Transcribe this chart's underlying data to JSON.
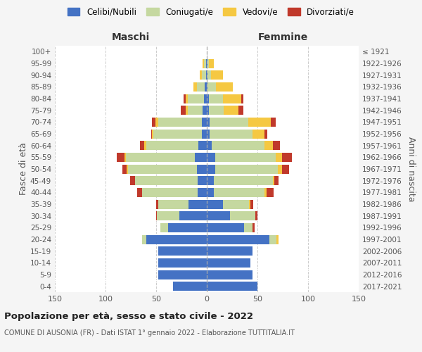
{
  "age_groups": [
    "100+",
    "95-99",
    "90-94",
    "85-89",
    "80-84",
    "75-79",
    "70-74",
    "65-69",
    "60-64",
    "55-59",
    "50-54",
    "45-49",
    "40-44",
    "35-39",
    "30-34",
    "25-29",
    "20-24",
    "15-19",
    "10-14",
    "5-9",
    "0-4"
  ],
  "birth_years": [
    "≤ 1921",
    "1922-1926",
    "1927-1931",
    "1932-1936",
    "1937-1941",
    "1942-1946",
    "1947-1951",
    "1952-1956",
    "1957-1961",
    "1962-1966",
    "1967-1971",
    "1972-1976",
    "1977-1981",
    "1982-1986",
    "1987-1991",
    "1992-1996",
    "1997-2001",
    "2002-2006",
    "2007-2011",
    "2012-2016",
    "2017-2021"
  ],
  "maschi": {
    "celibi": [
      0,
      1,
      1,
      2,
      3,
      4,
      5,
      5,
      8,
      12,
      10,
      9,
      9,
      18,
      27,
      38,
      60,
      48,
      48,
      48,
      33
    ],
    "coniugati": [
      0,
      2,
      4,
      8,
      16,
      15,
      43,
      48,
      52,
      68,
      68,
      62,
      55,
      30,
      22,
      8,
      4,
      0,
      0,
      0,
      0
    ],
    "vedovi": [
      0,
      1,
      2,
      3,
      2,
      2,
      3,
      1,
      2,
      1,
      1,
      0,
      0,
      0,
      0,
      0,
      0,
      0,
      0,
      0,
      0
    ],
    "divorziati": [
      0,
      0,
      0,
      0,
      2,
      5,
      3,
      1,
      4,
      8,
      4,
      5,
      5,
      2,
      1,
      0,
      0,
      0,
      0,
      0,
      0
    ]
  },
  "femmine": {
    "nubili": [
      0,
      1,
      1,
      1,
      2,
      2,
      3,
      3,
      5,
      8,
      8,
      7,
      7,
      16,
      23,
      37,
      62,
      45,
      43,
      45,
      50
    ],
    "coniugate": [
      0,
      1,
      3,
      8,
      14,
      15,
      38,
      42,
      52,
      60,
      62,
      58,
      50,
      26,
      25,
      8,
      7,
      0,
      0,
      0,
      0
    ],
    "vedove": [
      0,
      5,
      12,
      17,
      18,
      14,
      22,
      12,
      8,
      6,
      4,
      2,
      2,
      1,
      0,
      0,
      2,
      0,
      0,
      0,
      0
    ],
    "divorziate": [
      0,
      0,
      0,
      0,
      2,
      5,
      5,
      3,
      7,
      10,
      7,
      4,
      7,
      3,
      2,
      2,
      0,
      0,
      0,
      0,
      0
    ]
  },
  "colors": {
    "celibi": "#4472c4",
    "coniugati": "#c5d8a0",
    "vedovi": "#f5c842",
    "divorziati": "#c0392b"
  },
  "title": "Popolazione per età, sesso e stato civile - 2022",
  "subtitle": "COMUNE DI AUSONIA (FR) - Dati ISTAT 1° gennaio 2022 - Elaborazione TUTTITALIA.IT",
  "xlabel_left": "Maschi",
  "xlabel_right": "Femmine",
  "ylabel_left": "Fasce di età",
  "ylabel_right": "Anni di nascita",
  "xlim": 150,
  "bg_color": "#f5f5f5",
  "plot_bg": "#ffffff",
  "legend_labels": [
    "Celibi/Nubili",
    "Coniugati/e",
    "Vedovi/e",
    "Divorziati/e"
  ]
}
